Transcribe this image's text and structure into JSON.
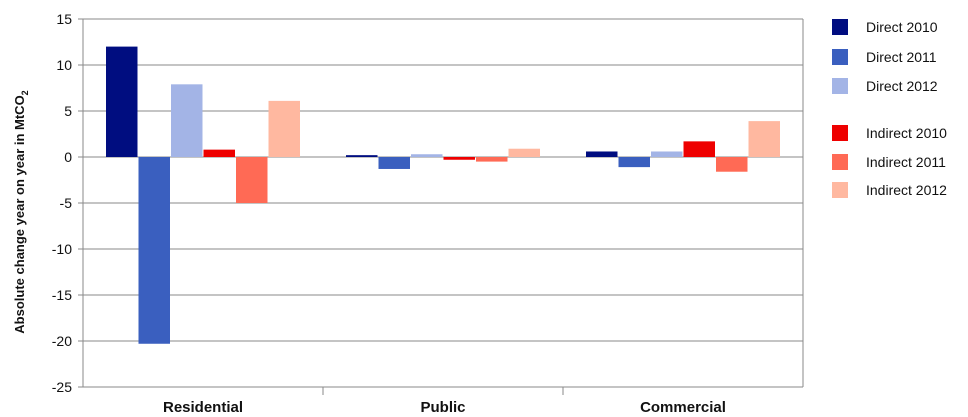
{
  "chart_data": {
    "type": "bar",
    "categories": [
      "Residential",
      "Public",
      "Commercial"
    ],
    "ylabel": "Absolute change year on year in MtCO",
    "ylabel_sub": "2",
    "ylim": [
      -25,
      15
    ],
    "yticks": [
      15,
      10,
      5,
      0,
      -5,
      -10,
      -15,
      -20,
      -25
    ],
    "grid": true,
    "legend_position": "right",
    "series": [
      {
        "name": "Direct 2010",
        "color": "#000d80",
        "values": [
          12,
          0.2,
          0.6
        ]
      },
      {
        "name": "Direct 2011",
        "color": "#3a5fbf",
        "values": [
          -20.3,
          -1.3,
          -1.1
        ]
      },
      {
        "name": "Direct 2012",
        "color": "#a3b4e6",
        "values": [
          7.9,
          0.3,
          0.6
        ]
      },
      {
        "name": "Indirect 2010",
        "color": "#ee0000",
        "values": [
          0.8,
          -0.3,
          1.7
        ]
      },
      {
        "name": "Indirect 2011",
        "color": "#ff6a55",
        "values": [
          -5,
          -0.5,
          -1.6
        ]
      },
      {
        "name": "Indirect 2012",
        "color": "#ffb8a0",
        "values": [
          6.1,
          0.9,
          3.9
        ]
      }
    ]
  }
}
